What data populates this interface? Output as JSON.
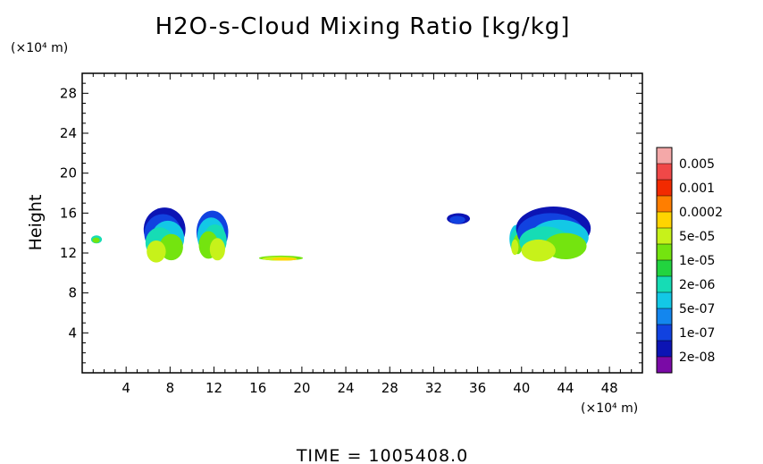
{
  "chart_data": {
    "type": "heatmap",
    "title": "H2O-s-Cloud Mixing Ratio [kg/kg]",
    "ylabel": "Height",
    "y_unit": "(×10⁴ m)",
    "x_unit": "(×10⁴ m)",
    "footer": "TIME = 1005408.0",
    "xlim": [
      0,
      51
    ],
    "ylim": [
      0,
      30
    ],
    "x_ticks": [
      4,
      8,
      12,
      16,
      20,
      24,
      28,
      32,
      36,
      40,
      44,
      48
    ],
    "y_ticks": [
      4,
      8,
      12,
      16,
      20,
      24,
      28
    ],
    "colorbar": {
      "labels": [
        "0.005",
        "0.001",
        "0.0002",
        "5e-05",
        "1e-05",
        "2e-06",
        "5e-07",
        "1e-07",
        "2e-08"
      ],
      "colors": [
        "#f4a8a8",
        "#f04848",
        "#f22a00",
        "#ff7e00",
        "#ffd400",
        "#c7f21a",
        "#74e40f",
        "#22d43f",
        "#16dcb5",
        "#13c8e6",
        "#1386ee",
        "#1142e0",
        "#0c14b4",
        "#7a0aa6"
      ]
    },
    "cloud_regions": [
      {
        "name": "small-cell-left",
        "x": [
          0.8,
          1.8
        ],
        "y": [
          12.9,
          13.7
        ],
        "levels": [
          "2e-06",
          "1e-05"
        ]
      },
      {
        "name": "anvil-1",
        "x": [
          5.6,
          9.4
        ],
        "y": [
          11.8,
          16.2
        ],
        "levels": [
          "2e-08",
          "1e-07",
          "5e-07",
          "2e-06",
          "1e-05",
          "5e-05"
        ]
      },
      {
        "name": "anvil-2",
        "x": [
          10.4,
          13.3
        ],
        "y": [
          11.6,
          15.9
        ],
        "levels": [
          "1e-07",
          "5e-07",
          "2e-06",
          "1e-05",
          "5e-05"
        ]
      },
      {
        "name": "stratiform-layer",
        "x": [
          16.1,
          20.1
        ],
        "y": [
          11.2,
          11.7
        ],
        "levels": [
          "1e-05",
          "5e-05",
          "0.0002"
        ]
      },
      {
        "name": "small-cell-right",
        "x": [
          33.2,
          35.3
        ],
        "y": [
          14.8,
          15.9
        ],
        "levels": [
          "2e-08",
          "1e-07"
        ]
      },
      {
        "name": "convective-tower",
        "x": [
          38.9,
          40.2
        ],
        "y": [
          11.8,
          14.6
        ],
        "levels": [
          "5e-07",
          "2e-06",
          "1e-05",
          "5e-05"
        ]
      },
      {
        "name": "anvil-3",
        "x": [
          39.5,
          46.3
        ],
        "y": [
          11.9,
          16.3
        ],
        "levels": [
          "2e-08",
          "1e-07",
          "5e-07",
          "2e-06",
          "1e-05",
          "5e-05"
        ]
      }
    ]
  }
}
